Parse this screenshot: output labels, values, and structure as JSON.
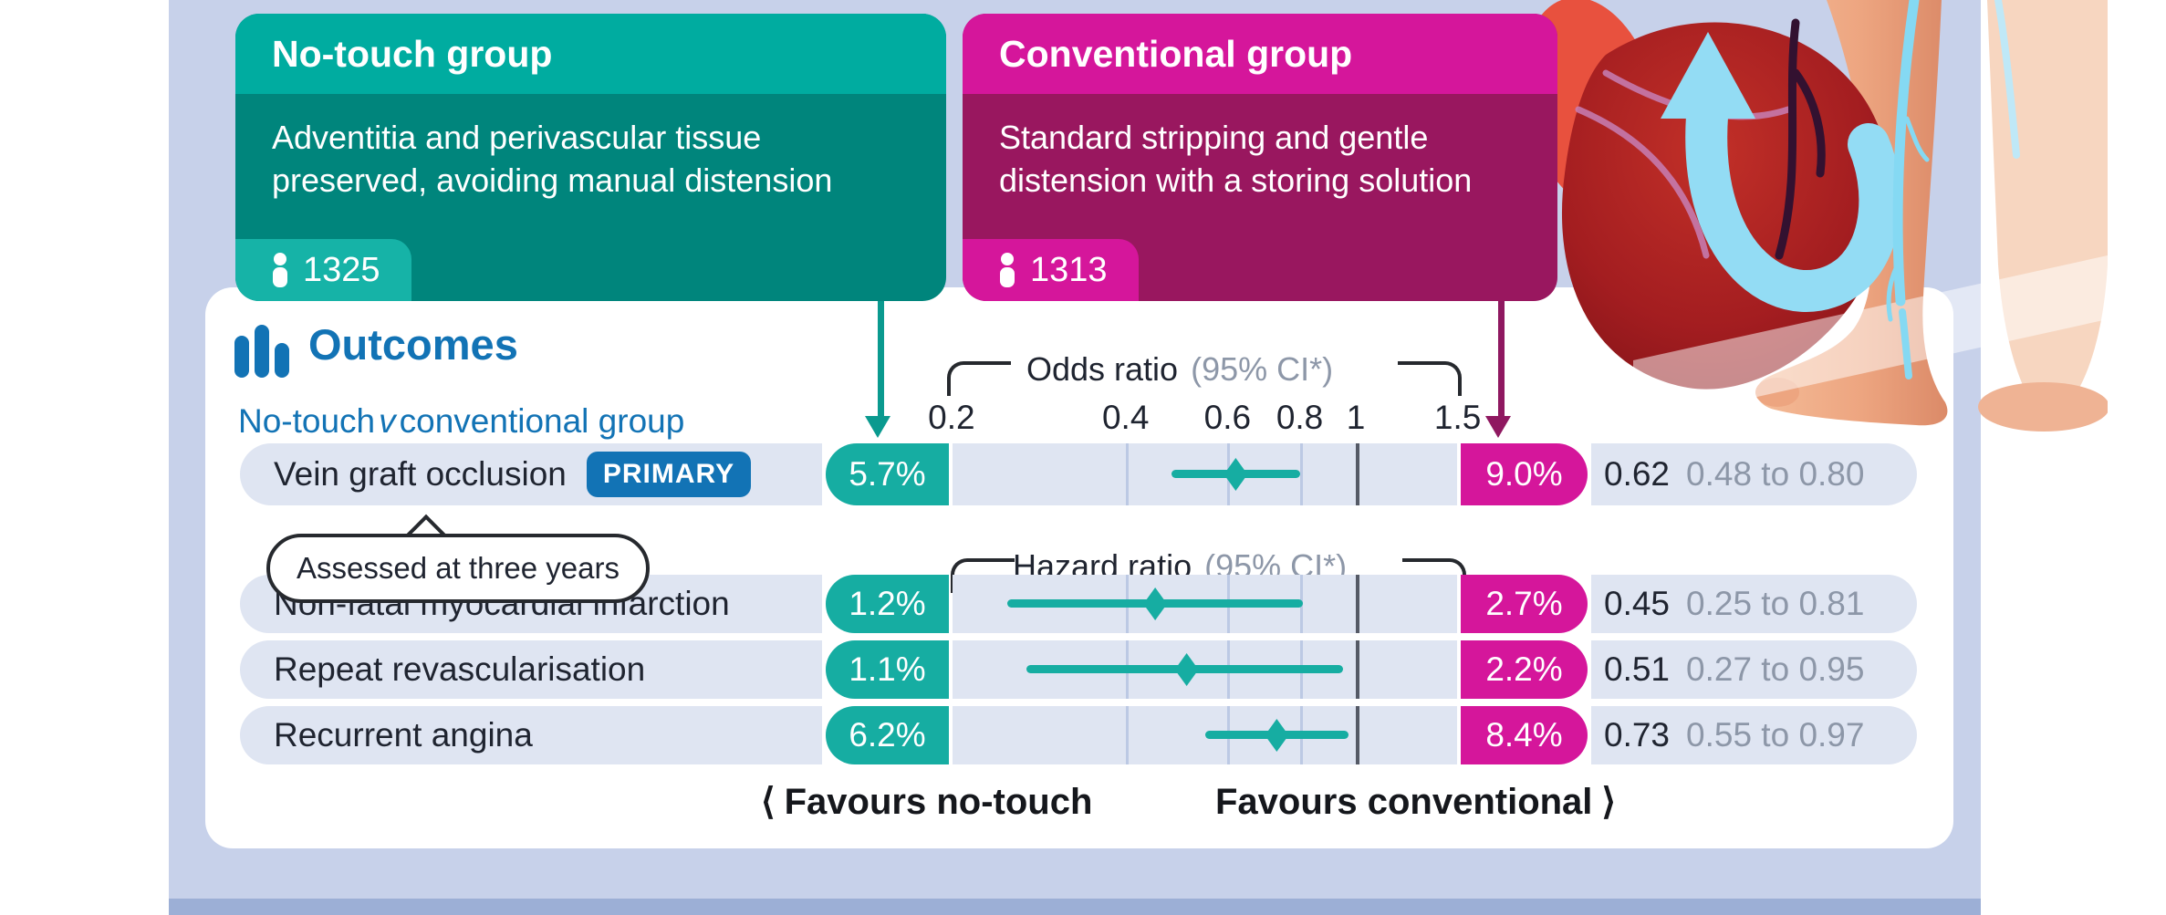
{
  "colors": {
    "bg": "#c7d1ea",
    "bgdark": "#9cafd6",
    "blue": "#1273b5",
    "tealhead": "#00aca0",
    "tealbody": "#00857c",
    "tealbadge": "#16b3a7",
    "teal": "#16ada2",
    "tealarrow": "#0a9a8f",
    "maghead": "#d5169b",
    "magbody": "#99175f",
    "magarrow": "#8f1860",
    "rowbg": "#dfe5f2",
    "grid": "#bcc9e4",
    "refline": "#555a66",
    "dark": "#1f2430",
    "gray": "#8d97a8"
  },
  "groups": {
    "no_touch": {
      "title": "No-touch group",
      "description": "Adventitia and perivascular tissue preserved, avoiding manual distension",
      "n": "1325"
    },
    "conventional": {
      "title": "Conventional group",
      "description": "Standard stripping and gentle distension with a storing solution",
      "n": "1313"
    }
  },
  "outcomes": {
    "title": "Outcomes",
    "subtitle_prefix": "No-touch",
    "subtitle_versus": "v",
    "subtitle_suffix": "conventional group"
  },
  "axes": {
    "odds": {
      "label": "Odds ratio",
      "ci": "(95% CI*)"
    },
    "hazard": {
      "label": "Hazard ratio",
      "ci": "(95% CI*)"
    }
  },
  "note_bubble": "Assessed at three years",
  "footer": {
    "left": "Favours no-touch",
    "right": "Favours conventional",
    "chev_left": "⟨",
    "chev_right": "⟩"
  },
  "chart_data": {
    "type": "forest",
    "x_axis": {
      "scale": "log",
      "ticks": [
        0.2,
        0.4,
        0.6,
        0.8,
        1,
        1.5
      ],
      "tick_labels": [
        "0.2",
        "0.4",
        "0.6",
        "0.8",
        "1",
        "1.5"
      ],
      "gridlines": [
        0.4,
        0.6,
        0.8
      ],
      "reference_line": 1
    },
    "rows": [
      {
        "label": "Vein graft occlusion",
        "badge": "PRIMARY",
        "note": "Assessed at three years",
        "measure": "Odds ratio",
        "no_touch_pct": "5.7%",
        "conventional_pct": "9.0%",
        "estimate": 0.62,
        "ci_low": 0.48,
        "ci_high": 0.8,
        "estimate_label": "0.62",
        "ci_label": "0.48 to 0.80"
      },
      {
        "label": "Non-fatal myocardial infarction",
        "measure": "Hazard ratio",
        "no_touch_pct": "1.2%",
        "conventional_pct": "2.7%",
        "estimate": 0.45,
        "ci_low": 0.25,
        "ci_high": 0.81,
        "estimate_label": "0.45",
        "ci_label": "0.25 to 0.81"
      },
      {
        "label": "Repeat revascularisation",
        "measure": "Hazard ratio",
        "no_touch_pct": "1.1%",
        "conventional_pct": "2.2%",
        "estimate": 0.51,
        "ci_low": 0.27,
        "ci_high": 0.95,
        "estimate_label": "0.51",
        "ci_label": "0.27 to 0.95"
      },
      {
        "label": "Recurrent angina",
        "measure": "Hazard ratio",
        "no_touch_pct": "6.2%",
        "conventional_pct": "8.4%",
        "estimate": 0.73,
        "ci_low": 0.55,
        "ci_high": 0.97,
        "estimate_label": "0.73",
        "ci_label": "0.55 to 0.97"
      }
    ]
  }
}
